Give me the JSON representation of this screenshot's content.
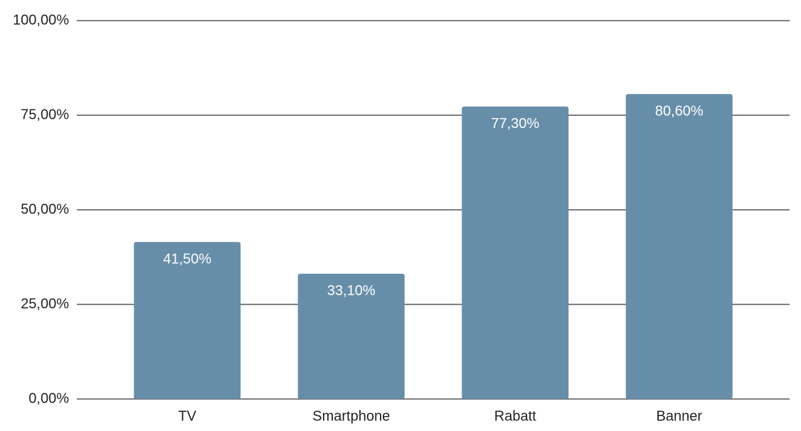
{
  "chart_data": {
    "type": "bar",
    "categories": [
      "TV",
      "Smartphone",
      "Rabatt",
      "Banner"
    ],
    "values": [
      41.5,
      33.1,
      77.3,
      80.6
    ],
    "value_labels": [
      "41,50%",
      "33,10%",
      "77,30%",
      "80,60%"
    ],
    "color": "#668ea9",
    "ylim": [
      0,
      100
    ],
    "yticks": [
      {
        "value": 0,
        "label": "0,00%"
      },
      {
        "value": 25,
        "label": "25,00%"
      },
      {
        "value": 50,
        "label": "50,00%"
      },
      {
        "value": 75,
        "label": "75,00%"
      },
      {
        "value": 100,
        "label": "100,00%"
      }
    ],
    "grid": true
  }
}
